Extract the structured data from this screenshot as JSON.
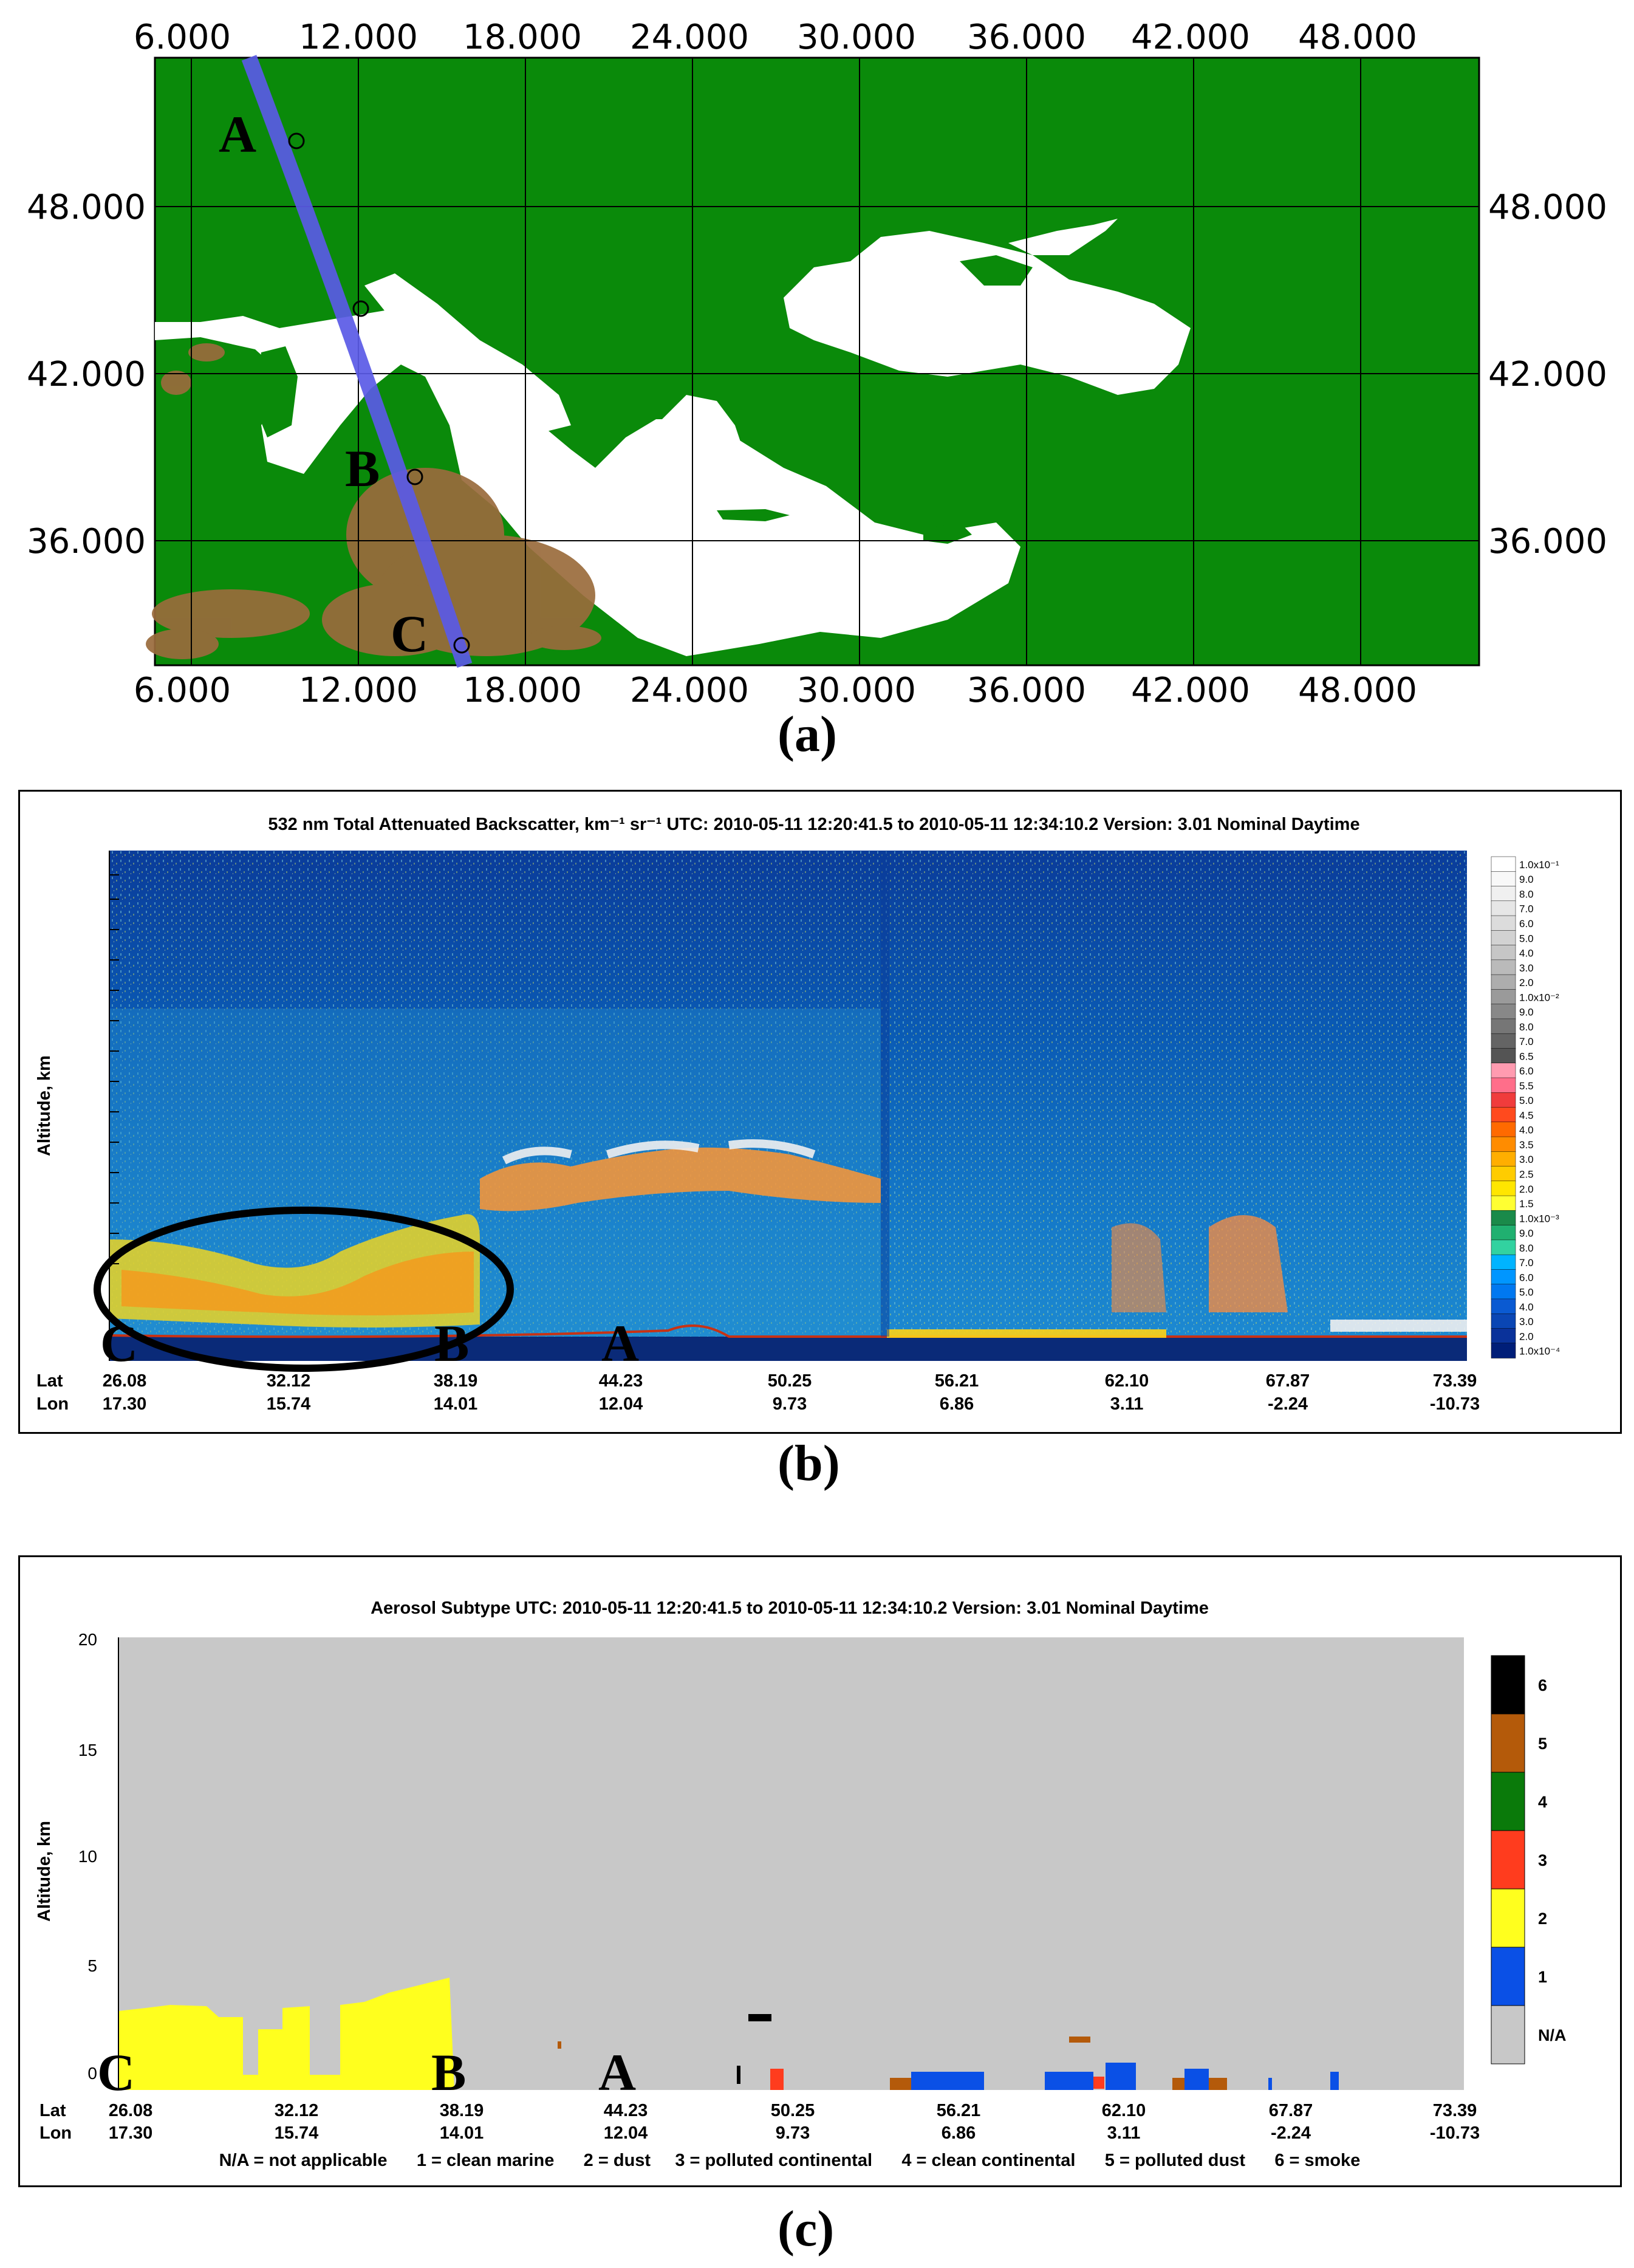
{
  "panels": {
    "a": {
      "label": "(a)",
      "x_ticks": [
        "6.000",
        "12.000",
        "18.000",
        "24.000",
        "30.000",
        "36.000",
        "42.000",
        "48.000"
      ],
      "y_ticks": [
        "48.000",
        "42.000",
        "36.000"
      ],
      "points": [
        "A",
        "B",
        "C"
      ],
      "colors": {
        "land": "#0a8a0a",
        "sea": "#ffffff",
        "dust": "#9a6b3c",
        "track": "#5a5ae6"
      }
    },
    "b": {
      "label": "(b)",
      "title": "532 nm Total Attenuated Backscatter, km⁻¹ sr⁻¹   UTC:  2010-05-11 12:20:41.5  to  2010-05-11 12:34:10.2   Version: 3.01  Nominal  Daytime",
      "ylabel": "Altitude, km",
      "points": [
        "C",
        "B",
        "A"
      ],
      "lat_label": "Lat",
      "lon_label": "Lon",
      "lat": [
        "26.08",
        "32.12",
        "38.19",
        "44.23",
        "50.25",
        "56.21",
        "62.10",
        "67.87",
        "73.39"
      ],
      "lon": [
        "17.30",
        "15.74",
        "14.01",
        "12.04",
        "9.73",
        "6.86",
        "3.11",
        "-2.24",
        "-10.73"
      ],
      "colorbar": [
        "1.0x10⁻¹",
        "9.0",
        "8.0",
        "7.0",
        "6.0",
        "5.0",
        "4.0",
        "3.0",
        "2.0",
        "1.0x10⁻²",
        "9.0",
        "8.0",
        "7.0",
        "6.5",
        "6.0",
        "5.5",
        "5.0",
        "4.5",
        "4.0",
        "3.5",
        "3.0",
        "2.5",
        "2.0",
        "1.5",
        "1.0x10⁻³",
        "9.0",
        "8.0",
        "7.0",
        "6.0",
        "5.0",
        "4.0",
        "3.0",
        "2.0",
        "1.0x10⁻⁴"
      ],
      "colorbar_colors": [
        "#ffffff",
        "#f8f8f8",
        "#f0f0f0",
        "#e6e6e6",
        "#dcdcdc",
        "#d2d2d2",
        "#c6c6c6",
        "#bababa",
        "#adadad",
        "#9a9a9a",
        "#888888",
        "#767676",
        "#646464",
        "#545454",
        "#ff9bb0",
        "#ff6e8a",
        "#f03c3c",
        "#ff4a1e",
        "#ff6a00",
        "#ff8c00",
        "#ffae00",
        "#ffcc00",
        "#ffe600",
        "#ffff32",
        "#1a8a4a",
        "#20b070",
        "#32d2a0",
        "#00b4ff",
        "#0096ff",
        "#0078f0",
        "#0a5ad2",
        "#0a46b4",
        "#0a329a",
        "#001e78"
      ]
    },
    "c": {
      "label": "(c)",
      "title": "Aerosol Subtype    UTC:  2010-05-11   12:20:41.5  to  2010-05-11   12:34:10.2   Version: 3.01  Nominal Daytime",
      "ylabel": "Altitude, km",
      "points": [
        "C",
        "B",
        "A"
      ],
      "lat_label": "Lat",
      "lon_label": "Lon",
      "lat": [
        "26.08",
        "32.12",
        "38.19",
        "44.23",
        "50.25",
        "56.21",
        "62.10",
        "67.87",
        "73.39"
      ],
      "lon": [
        "17.30",
        "15.74",
        "14.01",
        "12.04",
        "9.73",
        "6.86",
        "3.11",
        "-2.24",
        "-10.73"
      ],
      "legend_line": "N/A = not applicable      1 = clean marine      2 = dust     3 = polluted continental      4 = clean continental      5 = polluted dust      6 = smoke",
      "classes": [
        {
          "label": "6",
          "color": "#000000"
        },
        {
          "label": "5",
          "color": "#b45a0a"
        },
        {
          "label": "4",
          "color": "#0a7a0a"
        },
        {
          "label": "3",
          "color": "#ff3c1e"
        },
        {
          "label": "2",
          "color": "#ffff1e"
        },
        {
          "label": "1",
          "color": "#0a50e6"
        },
        {
          "label": "N/A",
          "color": "#c8c8c8"
        }
      ]
    }
  },
  "chart_data": [
    {
      "type": "other",
      "description_kind": "map",
      "x_ticks_lon": [
        "6.000",
        "12.000",
        "18.000",
        "24.000",
        "30.000",
        "36.000",
        "42.000",
        "48.000"
      ],
      "y_ticks_lat": [
        "48.000",
        "42.000",
        "36.000"
      ],
      "track_points": [
        {
          "label": "A",
          "lon": 10,
          "lat": 50.3
        },
        {
          "label": "",
          "lon": 12.2,
          "lat": 44.6
        },
        {
          "label": "B",
          "lon": 14.1,
          "lat": 38.6
        },
        {
          "label": "C",
          "lon": 15.8,
          "lat": 32.5
        }
      ]
    },
    {
      "type": "heatmap",
      "title": "532 nm Total Attenuated Backscatter, km⁻¹ sr⁻¹",
      "ylabel": "Altitude, km",
      "x": {
        "lat": [
          "26.08",
          "32.12",
          "38.19",
          "44.23",
          "50.25",
          "56.21",
          "62.10",
          "67.87",
          "73.39"
        ],
        "lon": [
          "17.30",
          "15.74",
          "14.01",
          "12.04",
          "9.73",
          "6.86",
          "3.11",
          "-2.24",
          "-10.73"
        ]
      }
    },
    {
      "type": "heatmap",
      "title": "Aerosol Subtype",
      "ylabel": "Altitude, km",
      "ylim": [
        0,
        20
      ],
      "y_ticks": [
        0,
        5,
        10,
        15,
        20
      ],
      "x": {
        "lat": [
          "26.08",
          "32.12",
          "38.19",
          "44.23",
          "50.25",
          "56.21",
          "62.10",
          "67.87",
          "73.39"
        ],
        "lon": [
          "17.30",
          "15.74",
          "14.01",
          "12.04",
          "9.73",
          "6.86",
          "3.11",
          "-2.24",
          "-10.73"
        ]
      },
      "layers": [
        {
          "class": "2 = dust",
          "lat_from": 26.08,
          "lat_to": 38.5,
          "alt_from": 0,
          "alt_to": 5.2
        },
        {
          "class": "6 = smoke",
          "lat_from": 48.8,
          "lat_to": 49.6,
          "alt_from": 4.6,
          "alt_to": 5.1
        },
        {
          "class": "3 = polluted continental",
          "lat_from": 49.0,
          "lat_to": 49.5,
          "alt_from": 0,
          "alt_to": 1.3
        },
        {
          "class": "1 = clean marine",
          "lat_from": 53.5,
          "lat_to": 57.5,
          "alt_from": 0,
          "alt_to": 1.2
        },
        {
          "class": "1 = clean marine",
          "lat_from": 59.5,
          "lat_to": 62.5,
          "alt_from": 0,
          "alt_to": 1.5
        },
        {
          "class": "1 = clean marine",
          "lat_from": 64.0,
          "lat_to": 65.5,
          "alt_from": 0,
          "alt_to": 1.2
        },
        {
          "class": "5 = polluted dust",
          "lat_from": 60.3,
          "lat_to": 61.3,
          "alt_from": 4.2,
          "alt_to": 4.6
        }
      ]
    }
  ]
}
